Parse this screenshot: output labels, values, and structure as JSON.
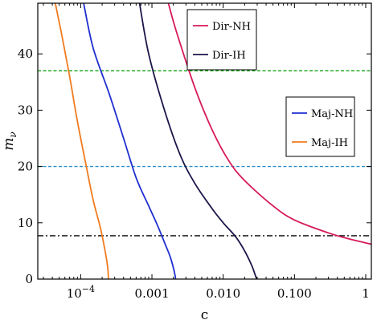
{
  "chart_data": {
    "type": "line",
    "xlabel": "c",
    "ylabel_main": "m",
    "ylabel_sub": "ν",
    "xscale": "log",
    "xlim": [
      2.5e-05,
      1.2
    ],
    "ylim": [
      0,
      49
    ],
    "grid": false,
    "x_ticks": [
      {
        "value": 0.0001,
        "label_base": "10",
        "label_exp": "−4"
      },
      {
        "value": 0.001,
        "label": "0.001"
      },
      {
        "value": 0.01,
        "label": "0.010"
      },
      {
        "value": 0.1,
        "label": "0.100"
      },
      {
        "value": 1,
        "label": "1"
      }
    ],
    "y_ticks": [
      0,
      10,
      20,
      30,
      40
    ],
    "hlines": [
      {
        "y": 37,
        "color": "#22aa22",
        "style": "dashed"
      },
      {
        "y": 20,
        "color": "#2a8ec8",
        "style": "dashed"
      },
      {
        "y": 7.7,
        "color": "#000000",
        "style": "dashdot"
      }
    ],
    "series": [
      {
        "name": "Dir-NH",
        "color": "#d6195b",
        "points": [
          [
            0.0017,
            49
          ],
          [
            0.0022,
            44
          ],
          [
            0.004,
            34
          ],
          [
            0.007,
            26.5
          ],
          [
            0.012,
            21
          ],
          [
            0.02,
            17.5
          ],
          [
            0.05,
            13
          ],
          [
            0.1,
            10.5
          ],
          [
            0.3,
            8.2
          ],
          [
            0.6,
            7.1
          ],
          [
            1.2,
            6.2
          ]
        ]
      },
      {
        "name": "Dir-IH",
        "color": "#1a1648",
        "points": [
          [
            0.00067,
            49
          ],
          [
            0.0009,
            40
          ],
          [
            0.0015,
            30
          ],
          [
            0.0025,
            22
          ],
          [
            0.004,
            17
          ],
          [
            0.007,
            12.5
          ],
          [
            0.01,
            10
          ],
          [
            0.015,
            7.5
          ],
          [
            0.02,
            5
          ],
          [
            0.025,
            2.5
          ],
          [
            0.028,
            0.8
          ],
          [
            0.0295,
            0
          ]
        ]
      },
      {
        "name": "Maj-NH",
        "color": "#1f2fcf",
        "points": [
          [
            0.00011,
            49
          ],
          [
            0.00015,
            41
          ],
          [
            0.00025,
            33
          ],
          [
            0.0004,
            25
          ],
          [
            0.0006,
            18
          ],
          [
            0.0009,
            13
          ],
          [
            0.0012,
            9.5
          ],
          [
            0.0015,
            6.5
          ],
          [
            0.0018,
            4
          ],
          [
            0.002,
            2
          ],
          [
            0.0021,
            0.8
          ],
          [
            0.00215,
            0
          ]
        ]
      },
      {
        "name": "Maj-IH",
        "color": "#f07b1e",
        "points": [
          [
            4.4e-05,
            49
          ],
          [
            5.5e-05,
            43
          ],
          [
            7e-05,
            36
          ],
          [
            9e-05,
            28
          ],
          [
            0.00012,
            20
          ],
          [
            0.00015,
            14
          ],
          [
            0.00019,
            9
          ],
          [
            0.00022,
            5
          ],
          [
            0.00024,
            2
          ],
          [
            0.000245,
            0
          ]
        ]
      }
    ],
    "legends": [
      {
        "position": "top-center",
        "items": [
          "Dir-NH",
          "Dir-IH"
        ]
      },
      {
        "position": "right",
        "items": [
          "Maj-NH",
          "Maj-IH"
        ]
      }
    ]
  }
}
